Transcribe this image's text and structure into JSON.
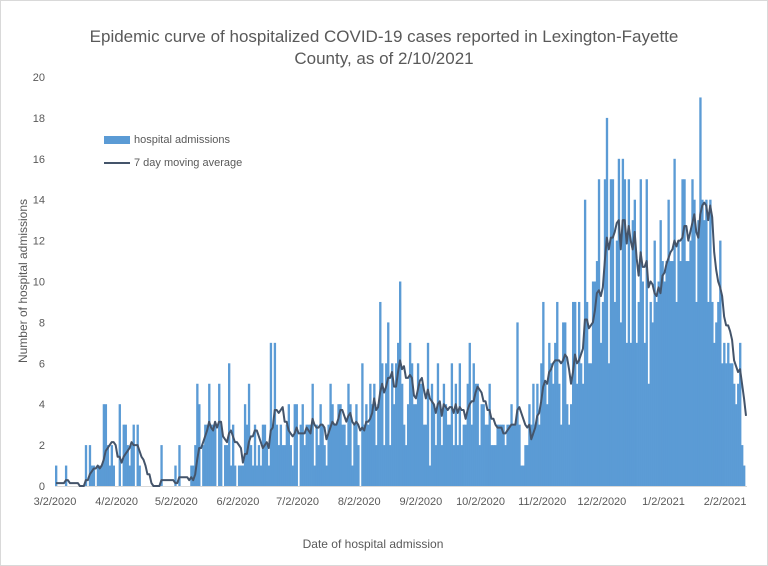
{
  "chart_data": {
    "type": "bar",
    "title": "Epidemic curve of hospitalized COVID-19 cases reported in Lexington-Fayette County, as of 2/10/2021",
    "title_lines": [
      "Epidemic curve of hospitalized COVID-19 cases reported in Lexington-Fayette",
      "County, as of 2/10/2021"
    ],
    "xlabel": "Date of hospital admission",
    "ylabel": "Number of hospital admissions",
    "ylim": [
      0,
      20
    ],
    "y_ticks": [
      "0",
      "2",
      "4",
      "6",
      "8",
      "10",
      "12",
      "14",
      "16",
      "18",
      "20"
    ],
    "x_tick_labels": [
      "3/2/2020",
      "4/2/2020",
      "5/2/2020",
      "6/2/2020",
      "7/2/2020",
      "8/2/2020",
      "9/2/2020",
      "10/2/2020",
      "11/2/2020",
      "12/2/2020",
      "1/2/2021",
      "2/2/2021"
    ],
    "x_start": "3/2/2020",
    "x_end": "2/10/2021",
    "grid": false,
    "legend_position": "top-left",
    "colors": {
      "admissions": "#5b9bd5",
      "moving_average": "#44546a"
    },
    "series": [
      {
        "name": "hospital admissions",
        "kind": "bar",
        "values_by_month": [
          [
            1,
            0,
            0,
            0,
            0,
            1,
            0,
            0,
            0,
            0,
            0,
            0,
            0,
            0,
            0,
            2,
            0,
            2,
            1,
            1,
            0,
            1,
            1,
            1,
            4,
            4,
            2,
            1,
            2,
            1,
            0
          ],
          [
            0,
            4,
            0,
            3,
            3,
            2,
            1,
            2,
            3,
            0,
            3,
            1,
            0,
            0,
            0,
            0,
            0,
            0,
            0,
            0,
            0,
            0,
            2,
            0,
            0,
            0,
            0,
            0,
            0,
            1,
            0
          ],
          [
            2,
            0,
            0,
            0,
            0,
            0,
            1,
            1,
            2,
            5,
            4,
            0,
            2,
            3,
            3,
            5,
            3,
            3,
            3,
            0,
            5,
            3,
            0,
            2,
            2,
            6,
            1,
            3,
            1,
            0,
            1
          ],
          [
            1,
            1,
            4,
            3,
            5,
            2,
            1,
            3,
            1,
            2,
            1,
            3,
            3,
            2,
            1,
            7,
            3,
            7,
            3,
            2,
            3,
            2,
            2,
            3,
            4,
            2,
            1,
            4,
            4,
            0
          ],
          [
            3,
            4,
            2,
            3,
            3,
            3,
            5,
            1,
            3,
            2,
            4,
            3,
            2,
            1,
            3,
            5,
            4,
            3,
            3,
            4,
            4,
            3,
            3,
            2,
            5,
            4,
            1,
            3,
            4,
            2,
            0
          ],
          [
            6,
            3,
            4,
            3,
            5,
            4,
            5,
            2,
            4,
            9,
            6,
            2,
            6,
            8,
            2,
            6,
            4,
            6,
            7,
            10,
            5,
            3,
            2,
            4,
            7,
            6,
            4,
            4,
            6,
            5,
            5
          ],
          [
            3,
            3,
            7,
            1,
            5,
            4,
            2,
            6,
            4,
            2,
            5,
            4,
            3,
            3,
            6,
            2,
            5,
            2,
            6,
            2,
            3,
            3,
            5,
            7,
            3,
            6,
            5,
            5,
            2,
            4
          ],
          [
            4,
            3,
            3,
            5,
            2,
            2,
            2,
            3,
            3,
            3,
            3,
            2,
            3,
            3,
            4,
            3,
            3,
            8,
            3,
            1,
            1,
            2,
            2,
            4,
            3,
            5,
            3,
            5,
            3,
            6,
            9
          ],
          [
            5,
            4,
            7,
            6,
            5,
            7,
            9,
            5,
            3,
            8,
            8,
            4,
            3,
            4,
            9,
            9,
            5,
            9,
            6,
            5,
            14,
            9,
            6,
            6,
            10,
            10,
            11,
            15,
            7,
            9
          ],
          [
            15,
            18,
            6,
            15,
            15,
            9,
            12,
            16,
            8,
            16,
            15,
            7,
            15,
            7,
            13,
            14,
            7,
            9,
            15,
            10,
            7,
            15,
            5,
            9,
            8,
            12,
            9,
            10,
            13,
            11,
            10
          ],
          [
            11,
            14,
            11,
            11,
            16,
            9,
            12,
            11,
            15,
            15,
            11,
            11,
            12,
            15,
            14,
            9,
            13,
            19,
            14,
            13,
            14,
            9,
            14,
            9,
            7,
            8,
            9,
            12,
            6,
            7,
            6
          ],
          [
            7,
            6,
            6,
            5,
            4,
            5,
            7,
            2,
            1,
            0
          ]
        ]
      },
      {
        "name": "7 day moving average",
        "kind": "line",
        "note_values": "trailing 7-day mean of hospital admissions"
      }
    ]
  }
}
